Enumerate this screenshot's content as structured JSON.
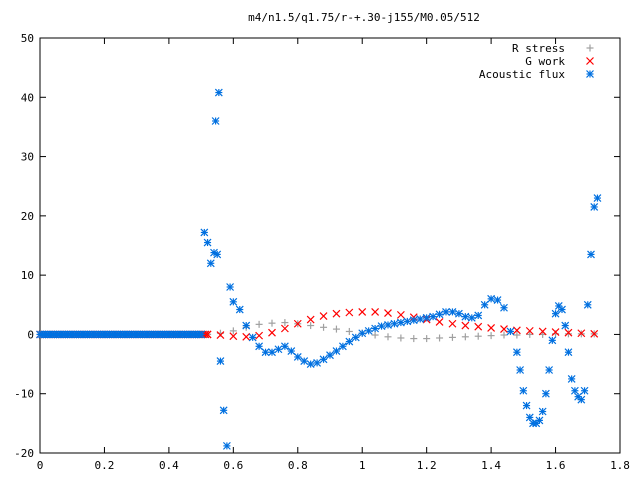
{
  "chart_data": {
    "type": "scatter",
    "title": "m4/n1.5/q1.75/r-+.30-j155/M0.05/512",
    "xlabel": "",
    "ylabel": "",
    "xlim": [
      0,
      1.8
    ],
    "ylim": [
      -20,
      50
    ],
    "x_ticks": [
      "0",
      "0.2",
      "0.4",
      "0.6",
      "0.8",
      "1",
      "1.2",
      "1.4",
      "1.6",
      "1.8"
    ],
    "y_ticks": [
      "-20",
      "-10",
      "0",
      "10",
      "20",
      "30",
      "40",
      "50"
    ],
    "grid": false,
    "legend_position": "top-right",
    "series": [
      {
        "name": "R stress",
        "marker": "plus",
        "color": "#a0a0a0",
        "x": [
          0.0,
          0.52,
          0.56,
          0.6,
          0.64,
          0.68,
          0.72,
          0.76,
          0.8,
          0.84,
          0.88,
          0.92,
          0.96,
          1.0,
          1.04,
          1.08,
          1.12,
          1.16,
          1.2,
          1.24,
          1.28,
          1.32,
          1.36,
          1.4,
          1.44,
          1.48,
          1.52,
          1.56,
          1.6,
          1.64,
          1.68,
          1.72
        ],
        "y": [
          0.0,
          0.0,
          0.2,
          0.6,
          1.2,
          1.7,
          1.9,
          2.0,
          1.8,
          1.5,
          1.2,
          0.9,
          0.5,
          0.2,
          -0.1,
          -0.4,
          -0.6,
          -0.7,
          -0.7,
          -0.6,
          -0.5,
          -0.4,
          -0.3,
          -0.2,
          -0.1,
          -0.1,
          0.0,
          0.0,
          0.1,
          0.1,
          0.1,
          0.1
        ]
      },
      {
        "name": "G work",
        "marker": "cross",
        "color": "#ff0000",
        "x": [
          0.0,
          0.52,
          0.56,
          0.6,
          0.64,
          0.68,
          0.72,
          0.76,
          0.8,
          0.84,
          0.88,
          0.92,
          0.96,
          1.0,
          1.04,
          1.08,
          1.12,
          1.16,
          1.2,
          1.24,
          1.28,
          1.32,
          1.36,
          1.4,
          1.44,
          1.48,
          1.52,
          1.56,
          1.6,
          1.64,
          1.68,
          1.72
        ],
        "y": [
          0.0,
          0.0,
          -0.1,
          -0.3,
          -0.4,
          -0.2,
          0.3,
          1.0,
          1.8,
          2.5,
          3.1,
          3.5,
          3.7,
          3.8,
          3.8,
          3.6,
          3.3,
          2.9,
          2.5,
          2.1,
          1.8,
          1.5,
          1.3,
          1.1,
          0.9,
          0.7,
          0.6,
          0.5,
          0.4,
          0.3,
          0.2,
          0.1
        ]
      },
      {
        "name": "Acoustic flux",
        "marker": "star",
        "color": "#0070e0",
        "x": [
          0.0,
          0.5,
          0.51,
          0.52,
          0.53,
          0.54,
          0.545,
          0.55,
          0.555,
          0.56,
          0.57,
          0.58,
          0.59,
          0.6,
          0.62,
          0.64,
          0.66,
          0.68,
          0.7,
          0.72,
          0.74,
          0.76,
          0.78,
          0.8,
          0.82,
          0.84,
          0.86,
          0.88,
          0.9,
          0.92,
          0.94,
          0.96,
          0.98,
          1.0,
          1.02,
          1.04,
          1.06,
          1.08,
          1.1,
          1.12,
          1.14,
          1.16,
          1.18,
          1.2,
          1.22,
          1.24,
          1.26,
          1.28,
          1.3,
          1.32,
          1.34,
          1.36,
          1.38,
          1.4,
          1.42,
          1.44,
          1.46,
          1.48,
          1.49,
          1.5,
          1.51,
          1.52,
          1.53,
          1.54,
          1.55,
          1.56,
          1.57,
          1.58,
          1.59,
          1.6,
          1.61,
          1.62,
          1.63,
          1.64,
          1.65,
          1.66,
          1.67,
          1.68,
          1.69,
          1.7,
          1.71,
          1.72,
          1.73
        ],
        "y": [
          0.0,
          0.0,
          17.2,
          15.5,
          12.0,
          13.8,
          36.0,
          13.5,
          40.8,
          -4.5,
          -12.8,
          -18.8,
          8.0,
          5.5,
          4.2,
          1.5,
          -0.5,
          -2.0,
          -3.0,
          -3.0,
          -2.5,
          -2.0,
          -2.8,
          -3.8,
          -4.5,
          -5.0,
          -4.8,
          -4.2,
          -3.5,
          -2.8,
          -2.0,
          -1.2,
          -0.5,
          0.2,
          0.6,
          1.0,
          1.4,
          1.6,
          1.8,
          2.0,
          2.2,
          2.4,
          2.6,
          2.8,
          3.0,
          3.4,
          3.8,
          3.8,
          3.5,
          3.0,
          2.8,
          3.2,
          5.0,
          6.0,
          5.8,
          4.5,
          0.5,
          -3.0,
          -6.0,
          -9.5,
          -12.0,
          -14.0,
          -15.0,
          -15.0,
          -14.5,
          -13.0,
          -10.0,
          -6.0,
          -1.0,
          3.5,
          4.8,
          4.2,
          1.5,
          -3.0,
          -7.5,
          -9.5,
          -10.5,
          -11.0,
          -9.5,
          5.0,
          13.5,
          21.5,
          23.0
        ]
      }
    ]
  }
}
